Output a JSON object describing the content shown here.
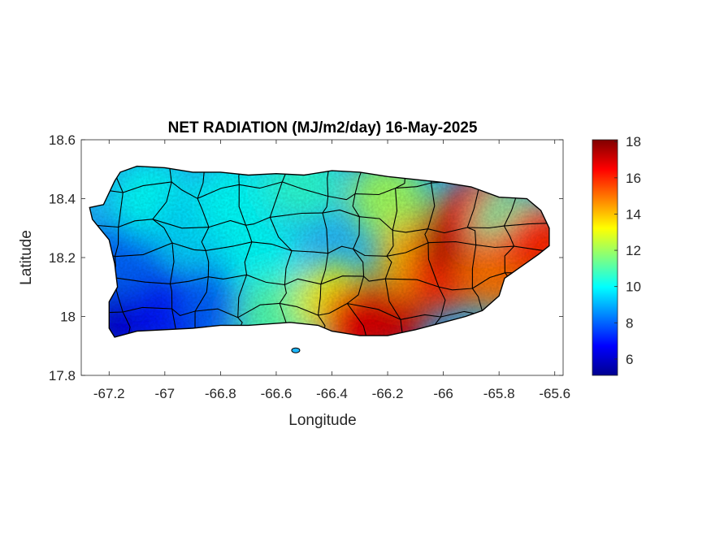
{
  "title": "NET RADIATION (MJ/m2/day) 16-May-2025",
  "xlabel": "Longitude",
  "ylabel": "Latitude",
  "xlim": [
    -67.3,
    -65.57
  ],
  "ylim": [
    17.8,
    18.6
  ],
  "xticks": [
    {
      "value": -67.2,
      "label": "-67.2"
    },
    {
      "value": -67.0,
      "label": "-67"
    },
    {
      "value": -66.8,
      "label": "-66.8"
    },
    {
      "value": -66.6,
      "label": "-66.6"
    },
    {
      "value": -66.4,
      "label": "-66.4"
    },
    {
      "value": -66.2,
      "label": "-66.2"
    },
    {
      "value": -66.0,
      "label": "-66"
    },
    {
      "value": -65.8,
      "label": "-65.8"
    },
    {
      "value": -65.6,
      "label": "-65.6"
    }
  ],
  "yticks": [
    {
      "value": 17.8,
      "label": "17.8"
    },
    {
      "value": 18.0,
      "label": "18"
    },
    {
      "value": 18.2,
      "label": "18.2"
    },
    {
      "value": 18.4,
      "label": "18.4"
    },
    {
      "value": 18.6,
      "label": "18.6"
    }
  ],
  "colorbar": {
    "range": [
      5.1,
      18.1
    ],
    "colormap": "jet",
    "ticks": [
      {
        "value": 6,
        "label": "6"
      },
      {
        "value": 8,
        "label": "8"
      },
      {
        "value": 10,
        "label": "10"
      },
      {
        "value": 12,
        "label": "12"
      },
      {
        "value": 14,
        "label": "14"
      },
      {
        "value": 16,
        "label": "16"
      },
      {
        "value": 18,
        "label": "18"
      }
    ]
  },
  "colors": {
    "border": "#000000",
    "axis": "#262626",
    "background": "#ffffff"
  },
  "chart_data": {
    "type": "heatmap",
    "title": "NET RADIATION (MJ/m2/day) 16-May-2025",
    "xlabel": "Longitude",
    "ylabel": "Latitude",
    "xlim": [
      -67.3,
      -65.57
    ],
    "ylim": [
      17.8,
      18.6
    ],
    "value_range": [
      5.1,
      18.1
    ],
    "units": "MJ/m2/day",
    "grid": false,
    "island_outline": [
      [
        -67.27,
        18.37
      ],
      [
        -67.22,
        18.38
      ],
      [
        -67.18,
        18.46
      ],
      [
        -67.16,
        18.49
      ],
      [
        -67.1,
        18.51
      ],
      [
        -67.0,
        18.505
      ],
      [
        -66.9,
        18.49
      ],
      [
        -66.8,
        18.49
      ],
      [
        -66.7,
        18.48
      ],
      [
        -66.6,
        18.485
      ],
      [
        -66.5,
        18.48
      ],
      [
        -66.4,
        18.495
      ],
      [
        -66.3,
        18.49
      ],
      [
        -66.2,
        18.475
      ],
      [
        -66.1,
        18.465
      ],
      [
        -66.0,
        18.455
      ],
      [
        -65.9,
        18.44
      ],
      [
        -65.8,
        18.405
      ],
      [
        -65.7,
        18.4
      ],
      [
        -65.65,
        18.36
      ],
      [
        -65.62,
        18.3
      ],
      [
        -65.62,
        18.24
      ],
      [
        -65.66,
        18.21
      ],
      [
        -65.72,
        18.17
      ],
      [
        -65.78,
        18.13
      ],
      [
        -65.8,
        18.07
      ],
      [
        -65.86,
        18.02
      ],
      [
        -65.92,
        18.0
      ],
      [
        -66.0,
        17.98
      ],
      [
        -66.1,
        17.955
      ],
      [
        -66.2,
        17.935
      ],
      [
        -66.3,
        17.935
      ],
      [
        -66.4,
        17.95
      ],
      [
        -66.45,
        17.97
      ],
      [
        -66.55,
        17.98
      ],
      [
        -66.7,
        17.97
      ],
      [
        -66.8,
        17.97
      ],
      [
        -66.9,
        17.96
      ],
      [
        -67.0,
        17.955
      ],
      [
        -67.1,
        17.95
      ],
      [
        -67.18,
        17.93
      ],
      [
        -67.2,
        17.96
      ],
      [
        -67.2,
        18.0
      ],
      [
        -67.2,
        18.05
      ],
      [
        -67.17,
        18.1
      ],
      [
        -67.18,
        18.18
      ],
      [
        -67.2,
        18.26
      ],
      [
        -67.26,
        18.33
      ]
    ],
    "field_samples": [
      {
        "lon": -67.15,
        "lat": 18.0,
        "value": 6
      },
      {
        "lon": -67.05,
        "lat": 18.05,
        "value": 6.5
      },
      {
        "lon": -67.15,
        "lat": 18.2,
        "value": 8
      },
      {
        "lon": -67.05,
        "lat": 18.4,
        "value": 10
      },
      {
        "lon": -66.95,
        "lat": 18.0,
        "value": 7
      },
      {
        "lon": -66.8,
        "lat": 18.05,
        "value": 8
      },
      {
        "lon": -66.9,
        "lat": 18.3,
        "value": 9.5
      },
      {
        "lon": -66.75,
        "lat": 18.4,
        "value": 10
      },
      {
        "lon": -66.65,
        "lat": 18.2,
        "value": 10
      },
      {
        "lon": -66.6,
        "lat": 18.0,
        "value": 11
      },
      {
        "lon": -66.5,
        "lat": 18.45,
        "value": 10.5
      },
      {
        "lon": -66.4,
        "lat": 18.05,
        "value": 13
      },
      {
        "lon": -66.3,
        "lat": 17.98,
        "value": 16.5
      },
      {
        "lon": -66.2,
        "lat": 18.0,
        "value": 17
      },
      {
        "lon": -66.2,
        "lat": 18.4,
        "value": 12
      },
      {
        "lon": -66.1,
        "lat": 18.2,
        "value": 14
      },
      {
        "lon": -66.0,
        "lat": 18.15,
        "value": 16
      },
      {
        "lon": -65.95,
        "lat": 18.28,
        "value": 17.5
      },
      {
        "lon": -65.85,
        "lat": 18.35,
        "value": 16.5
      },
      {
        "lon": -65.75,
        "lat": 18.3,
        "value": 11
      },
      {
        "lon": -65.8,
        "lat": 18.15,
        "value": 15
      },
      {
        "lon": -65.65,
        "lat": 18.25,
        "value": 16
      }
    ],
    "islets": [
      {
        "lon": -66.53,
        "lat": 17.885
      }
    ]
  }
}
